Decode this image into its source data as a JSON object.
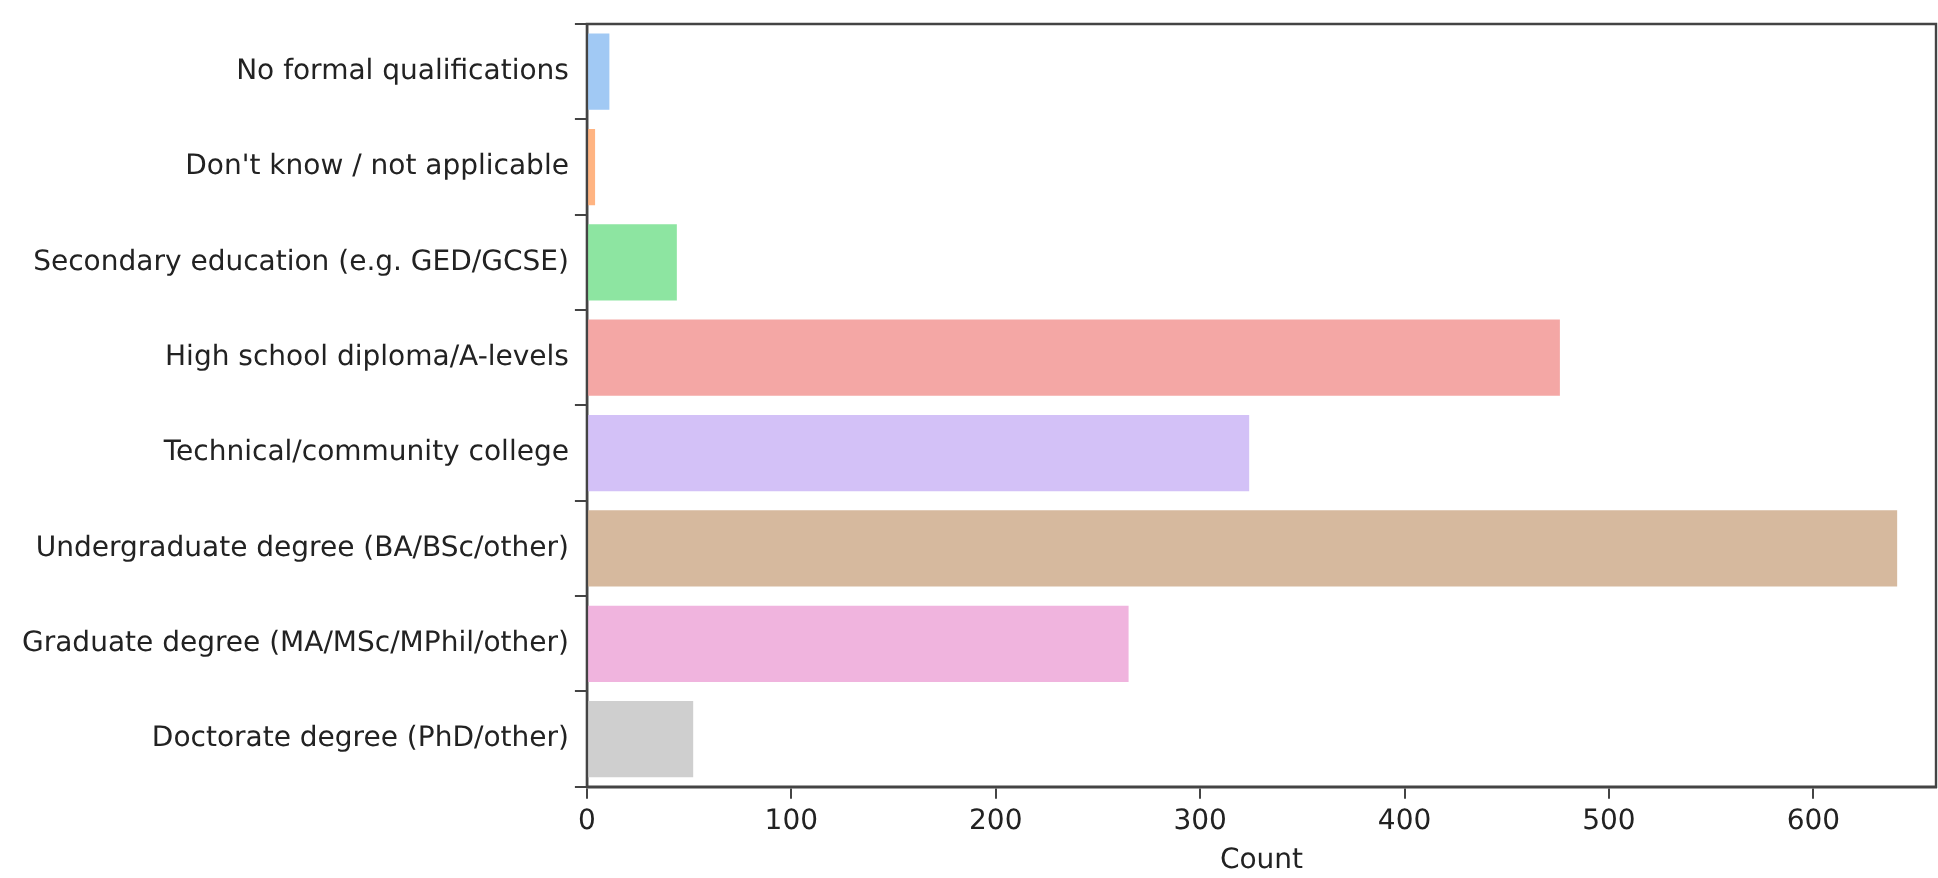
{
  "chart_data": {
    "type": "bar",
    "orientation": "horizontal",
    "xlabel": "Count",
    "categories": [
      "No formal qualifications",
      "Don't know / not applicable",
      "Secondary education (e.g. GED/GCSE)",
      "High school diploma/A-levels",
      "Technical/community college",
      "Undergraduate degree (BA/BSc/other)",
      "Graduate degree (MA/MSc/MPhil/other)",
      "Doctorate degree (PhD/other)"
    ],
    "values": [
      11,
      4,
      44,
      476,
      324,
      641,
      265,
      52
    ],
    "colors": [
      "#a1c9f4",
      "#ffb482",
      "#8de5a1",
      "#f4a7a5",
      "#d3c1f7",
      "#d6b99e",
      "#f0b4de",
      "#cfcfcf"
    ],
    "xlim": [
      0,
      660
    ],
    "xticks": [
      0,
      100,
      200,
      300,
      400,
      500,
      600
    ],
    "grid": false,
    "legend": false
  }
}
